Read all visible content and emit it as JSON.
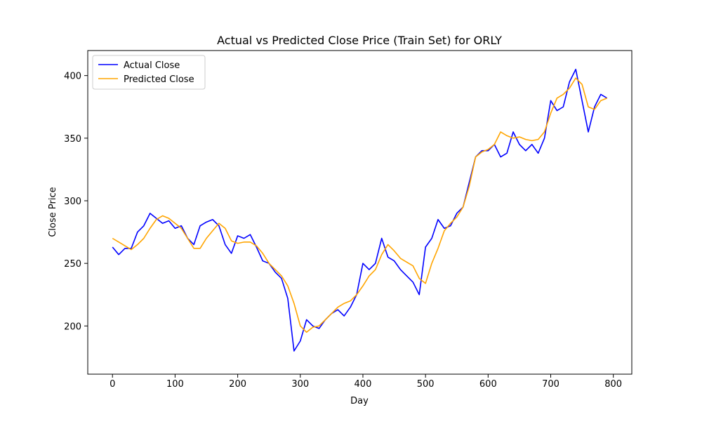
{
  "chart_data": {
    "type": "line",
    "title": "Actual vs Predicted Close Price (Train Set) for ORLY",
    "x_label": "Day",
    "y_label": "Close Price",
    "x": [
      0,
      10,
      20,
      30,
      40,
      50,
      60,
      70,
      80,
      90,
      100,
      110,
      120,
      130,
      140,
      150,
      160,
      170,
      180,
      190,
      200,
      210,
      220,
      230,
      240,
      250,
      260,
      270,
      280,
      290,
      300,
      310,
      320,
      330,
      340,
      350,
      360,
      370,
      380,
      390,
      400,
      410,
      420,
      430,
      440,
      450,
      460,
      470,
      480,
      490,
      500,
      510,
      520,
      530,
      540,
      550,
      560,
      570,
      580,
      590,
      600,
      610,
      620,
      630,
      640,
      650,
      660,
      670,
      680,
      690,
      700,
      710,
      720,
      730,
      740,
      750,
      760,
      770,
      780,
      790
    ],
    "series": [
      {
        "name": "Actual Close",
        "color": "#0000ff",
        "values": [
          263,
          257,
          262,
          262,
          275,
          280,
          290,
          286,
          282,
          284,
          278,
          280,
          270,
          265,
          280,
          283,
          285,
          280,
          265,
          258,
          272,
          270,
          273,
          263,
          252,
          250,
          243,
          238,
          222,
          180,
          188,
          205,
          200,
          198,
          205,
          210,
          213,
          208,
          215,
          225,
          250,
          245,
          250,
          270,
          255,
          252,
          245,
          240,
          235,
          225,
          263,
          270,
          285,
          278,
          280,
          290,
          295,
          315,
          335,
          340,
          340,
          345,
          335,
          338,
          355,
          345,
          340,
          345,
          338,
          350,
          380,
          372,
          375,
          395,
          405,
          380,
          355,
          375,
          385,
          382
        ]
      },
      {
        "name": "Predicted Close",
        "color": "#ffa500",
        "values": [
          270,
          267,
          264,
          261,
          265,
          270,
          278,
          285,
          288,
          286,
          282,
          278,
          270,
          262,
          262,
          270,
          276,
          282,
          278,
          268,
          266,
          267,
          267,
          264,
          258,
          250,
          245,
          240,
          232,
          218,
          200,
          195,
          199,
          200,
          205,
          210,
          215,
          218,
          220,
          225,
          232,
          240,
          245,
          257,
          265,
          260,
          254,
          251,
          248,
          238,
          234,
          250,
          262,
          276,
          282,
          287,
          295,
          312,
          335,
          339,
          341,
          345,
          355,
          352,
          350,
          351,
          349,
          348,
          349,
          355,
          370,
          382,
          385,
          390,
          398,
          393,
          375,
          373,
          380,
          382
        ]
      }
    ],
    "xlim": [
      -39.5,
      829.5
    ],
    "ylim": [
      161.5,
      420
    ],
    "xticks": [
      0,
      100,
      200,
      300,
      400,
      500,
      600,
      700,
      800
    ],
    "yticks": [
      200,
      250,
      300,
      350,
      400
    ],
    "legend": "upper left"
  }
}
